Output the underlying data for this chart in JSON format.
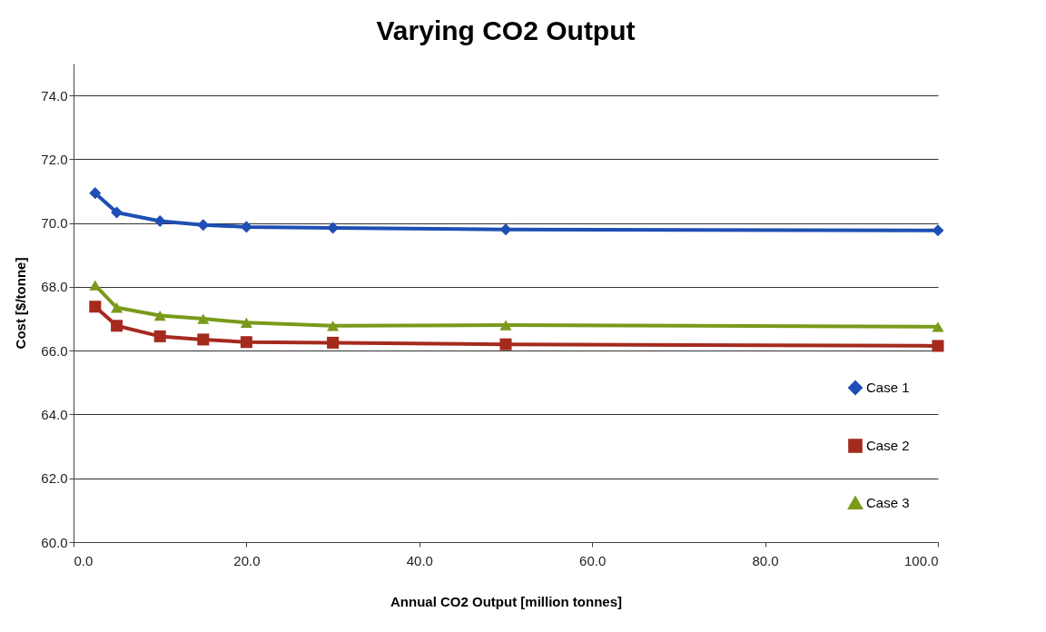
{
  "chart_data": {
    "type": "line",
    "title": "Varying CO2 Output",
    "xlabel": "Annual CO2 Output [million tonnes]",
    "ylabel": "Cost [$/tonne]",
    "x": [
      2.5,
      5,
      10,
      15,
      20,
      30,
      50,
      100
    ],
    "series": [
      {
        "name": "Case 1",
        "color": "#1f4fb4",
        "marker": "diamond",
        "values": [
          70.94,
          70.33,
          70.06,
          69.94,
          69.88,
          69.85,
          69.8,
          69.77
        ]
      },
      {
        "name": "Case 2",
        "color": "#a52a1e",
        "marker": "square",
        "values": [
          67.38,
          66.78,
          66.45,
          66.35,
          66.27,
          66.25,
          66.2,
          66.15
        ]
      },
      {
        "name": "Case 3",
        "color": "#7a9a1a",
        "marker": "triangle",
        "values": [
          68.05,
          67.35,
          67.1,
          67.0,
          66.88,
          66.78,
          66.8,
          66.75
        ]
      }
    ],
    "xlim": [
      0,
      100
    ],
    "xticks": [
      {
        "value": 0,
        "label": "0.0"
      },
      {
        "value": 20,
        "label": "20.0"
      },
      {
        "value": 40,
        "label": "40.0"
      },
      {
        "value": 60,
        "label": "60.0"
      },
      {
        "value": 80,
        "label": "80.0"
      },
      {
        "value": 100,
        "label": "100.0"
      }
    ],
    "ylim": [
      60,
      75
    ],
    "yticks": [
      {
        "value": 60,
        "label": "60.0"
      },
      {
        "value": 62,
        "label": "62.0"
      },
      {
        "value": 64,
        "label": "64.0"
      },
      {
        "value": 66,
        "label": "66.0"
      },
      {
        "value": 68,
        "label": "68.0"
      },
      {
        "value": 70,
        "label": "70.0"
      },
      {
        "value": 72,
        "label": "72.0"
      },
      {
        "value": 74,
        "label": "74.0"
      }
    ],
    "grid": "y",
    "legend": "bottom right",
    "line_style": "solid"
  }
}
